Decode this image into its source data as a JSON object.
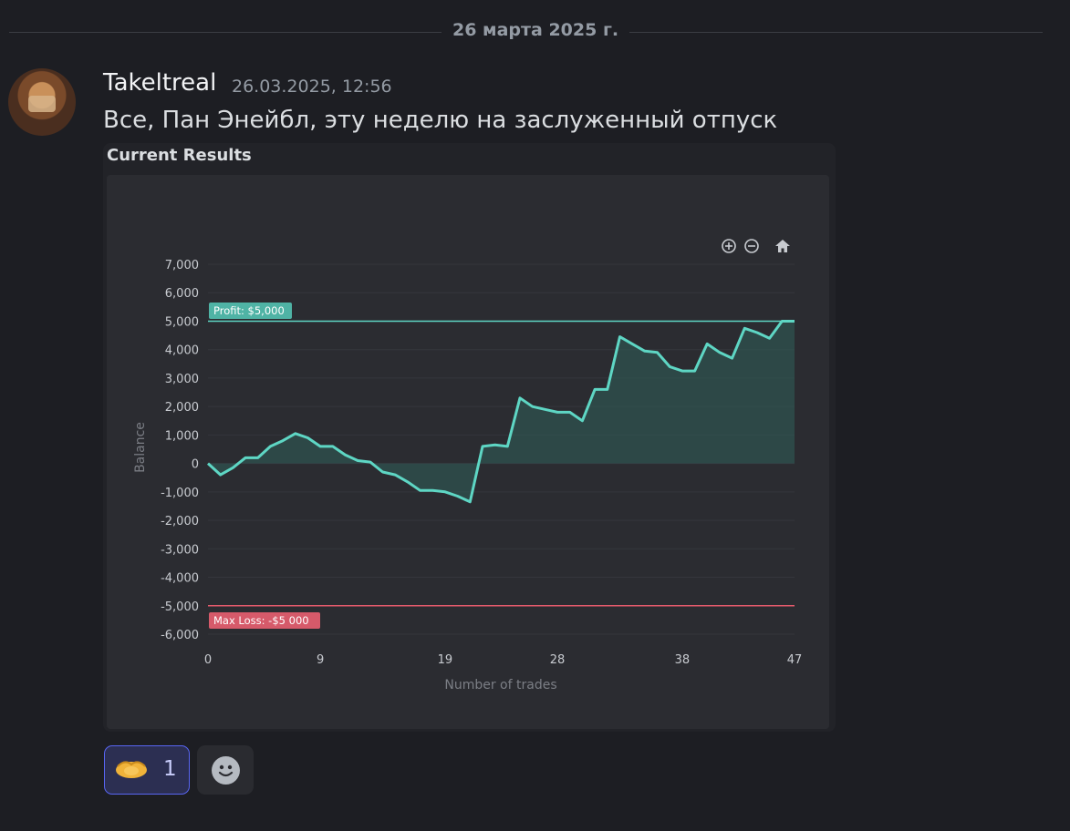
{
  "date_divider": "26 марта 2025 г.",
  "message": {
    "author": "Takeltreal",
    "timestamp": "26.03.2025, 12:56",
    "text": "Все, Пан Энейбл, эту неделю на заслуженный отпуск"
  },
  "embed": {
    "title": "Current Results"
  },
  "toolbar": {
    "zoom_in": "zoom-in-icon",
    "zoom_out": "zoom-out-icon",
    "home": "home-icon"
  },
  "chart_data": {
    "type": "area",
    "xlabel": "Number of trades",
    "ylabel": "Balance",
    "ylim": [
      -6000,
      7000
    ],
    "xlim": [
      0,
      47
    ],
    "x_ticks": [
      "0",
      "9",
      "19",
      "28",
      "38",
      "47"
    ],
    "y_ticks": [
      "7,000",
      "6,000",
      "5,000",
      "4,000",
      "3,000",
      "2,000",
      "1,000",
      "0",
      "-1,000",
      "-2,000",
      "-3,000",
      "-4,000",
      "-5,000",
      "-6,000"
    ],
    "series": [
      {
        "color": "#5ed6c4",
        "x": [
          0,
          1,
          2,
          3,
          4,
          5,
          6,
          7,
          8,
          9,
          10,
          11,
          12,
          13,
          14,
          15,
          16,
          17,
          18,
          19,
          20,
          21,
          22,
          23,
          24,
          25,
          26,
          27,
          28,
          29,
          30,
          31,
          32,
          33,
          34,
          35,
          36,
          37,
          38,
          39,
          40,
          41,
          42,
          43,
          44,
          45,
          46,
          47
        ],
        "y": [
          0,
          -400,
          -150,
          200,
          200,
          600,
          800,
          1050,
          900,
          600,
          600,
          300,
          100,
          50,
          -300,
          -400,
          -650,
          -950,
          -950,
          -1000,
          -1150,
          -1350,
          600,
          650,
          600,
          2300,
          2000,
          1900,
          1800,
          1800,
          1500,
          2600,
          2600,
          4450,
          4200,
          3950,
          3900,
          3400,
          3250,
          3250,
          4200,
          3900,
          3700,
          4750,
          4600,
          4400,
          5000,
          5000
        ]
      }
    ],
    "reference_lines": [
      {
        "label": "Profit: $5,000",
        "value": 5000,
        "color": "#5ed6c4"
      },
      {
        "label": "Max Loss: -$5 000",
        "value": -5000,
        "color": "#e45a6c"
      }
    ],
    "grid": true
  },
  "reactions": [
    {
      "emoji": "handshake-emoji",
      "count": "1"
    }
  ],
  "add_reaction": {
    "icon": "smile-icon"
  }
}
